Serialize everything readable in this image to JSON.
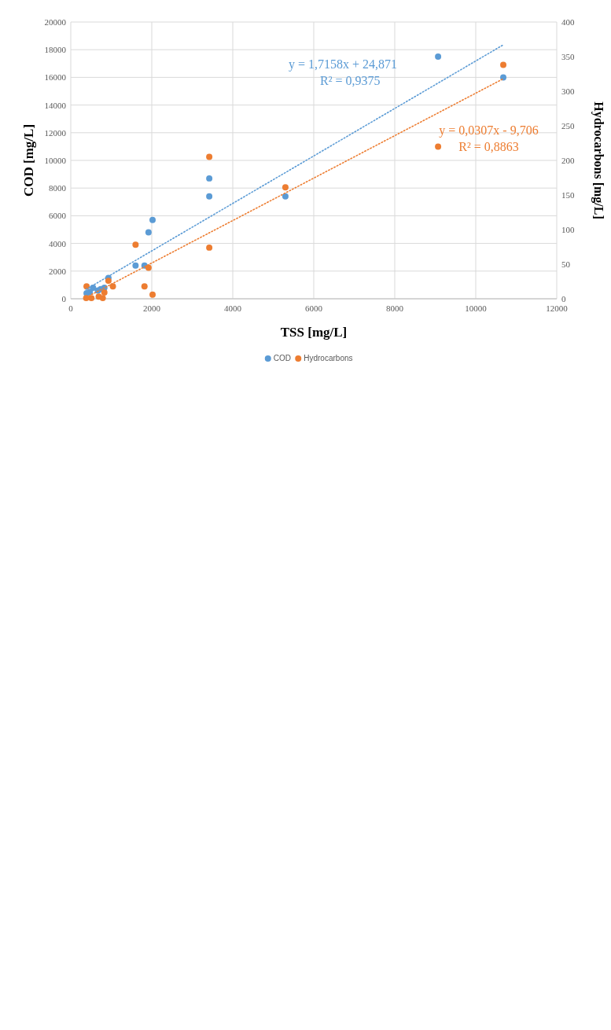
{
  "chart_data": {
    "type": "scatter",
    "xlabel": "TSS [mg/L]",
    "ylabel": "COD [mg/L]",
    "y2label": "Hydrocarbons [mg/L]",
    "xlim": [
      0,
      12000
    ],
    "xticks": [
      0,
      2000,
      4000,
      6000,
      8000,
      10000,
      12000
    ],
    "ylim": [
      0,
      20000
    ],
    "yticks": [
      0,
      2000,
      4000,
      6000,
      8000,
      10000,
      12000,
      14000,
      16000,
      18000,
      20000
    ],
    "y2lim": [
      0,
      400
    ],
    "y2ticks": [
      0,
      50,
      100,
      150,
      200,
      250,
      300,
      350,
      400
    ],
    "grid": true,
    "legend": "bottom",
    "marker": "circle",
    "series": [
      {
        "name": "COD",
        "color": "#5b9bd5",
        "x": [
          10680,
          9070,
          5300,
          3420,
          3420,
          2020,
          1920,
          1820,
          1600,
          930,
          830,
          740,
          670,
          550,
          470,
          390
        ],
        "values": [
          16000,
          17500,
          7400,
          8700,
          7400,
          5700,
          4800,
          2400,
          2400,
          1500,
          800,
          700,
          600,
          800,
          500,
          400
        ]
      },
      {
        "name": "Hydrocarbons",
        "color": "#ed7d31",
        "axis": "y2",
        "x": [
          10680,
          9070,
          5300,
          3420,
          3420,
          2020,
          1920,
          1820,
          1600,
          1040,
          930,
          830,
          790,
          690,
          510,
          390,
          380
        ],
        "values": [
          338,
          220,
          161,
          205,
          74,
          6,
          45,
          18,
          78,
          18,
          26,
          9,
          1,
          3,
          1,
          18,
          1
        ]
      },
      {
        "type": "line",
        "color": "#5b9bd5",
        "line_style": "dotted",
        "marker": "none",
        "x": [
          380,
          10680
        ],
        "values": [
          680,
          18350
        ]
      },
      {
        "type": "line",
        "color": "#ed7d31",
        "line_style": "dotted",
        "marker": "none",
        "axis": "y2",
        "x": [
          380,
          10680
        ],
        "values": [
          2,
          318
        ]
      }
    ],
    "annotations": [
      "y = 1,7158x + 24,871",
      "R² = 0,9375",
      "y = 0,0307x - 9,706",
      "R² = 0,8863"
    ]
  }
}
